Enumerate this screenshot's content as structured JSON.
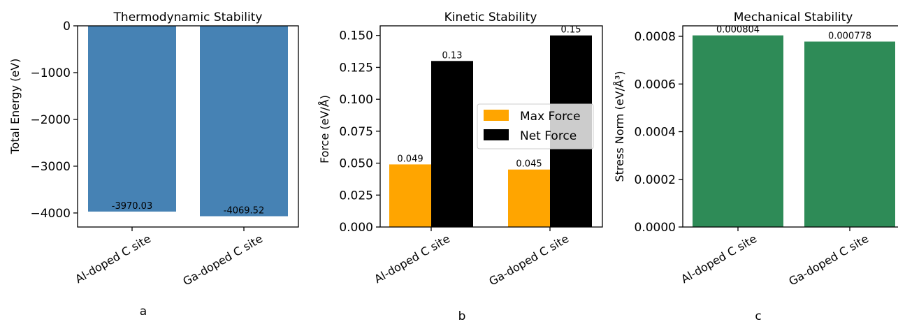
{
  "chart_data": [
    {
      "type": "bar",
      "title": "Thermodynamic Stability",
      "ylabel": "Total Energy (eV)",
      "categories": [
        "Al-doped C site",
        "Ga-doped C site"
      ],
      "values": [
        -3970.03,
        -4069.52
      ],
      "value_labels": [
        "-3970.03",
        "-4069.52"
      ],
      "ylim": [
        -4300,
        0
      ],
      "yticks": [
        0,
        -1000,
        -2000,
        -3000,
        -4000
      ],
      "ytick_labels": [
        "0",
        "−1000",
        "−2000",
        "−3000",
        "−4000"
      ],
      "color": "#4682b4",
      "panel_label": "a",
      "grid": false
    },
    {
      "type": "bar",
      "title": "Kinetic Stability",
      "ylabel": "Force (eV/Å)",
      "categories": [
        "Al-doped C site",
        "Ga-doped C site"
      ],
      "series": [
        {
          "name": "Max Force",
          "values": [
            0.049,
            0.045
          ],
          "value_labels": [
            "0.049",
            "0.045"
          ],
          "color": "#ffa500"
        },
        {
          "name": "Net Force",
          "values": [
            0.13,
            0.15
          ],
          "value_labels": [
            "0.13",
            "0.15"
          ],
          "color": "#000000"
        }
      ],
      "ylim": [
        0,
        0.1575
      ],
      "yticks": [
        0,
        0.025,
        0.05,
        0.075,
        0.1,
        0.125,
        0.15
      ],
      "ytick_labels": [
        "0.000",
        "0.025",
        "0.050",
        "0.075",
        "0.100",
        "0.125",
        "0.150"
      ],
      "legend": "center-right",
      "panel_label": "b",
      "grid": false
    },
    {
      "type": "bar",
      "title": "Mechanical Stability",
      "ylabel": "Stress Norm (eV/Å³)",
      "categories": [
        "Al-doped C site",
        "Ga-doped C site"
      ],
      "values": [
        0.000804,
        0.000778
      ],
      "value_labels": [
        "0.000804",
        "0.000778"
      ],
      "ylim": [
        0,
        0.000844
      ],
      "yticks": [
        0,
        0.0002,
        0.0004,
        0.0006,
        0.0008
      ],
      "ytick_labels": [
        "0.0000",
        "0.0002",
        "0.0004",
        "0.0006",
        "0.0008"
      ],
      "color": "#2e8b57",
      "panel_label": "c",
      "grid": false
    }
  ]
}
